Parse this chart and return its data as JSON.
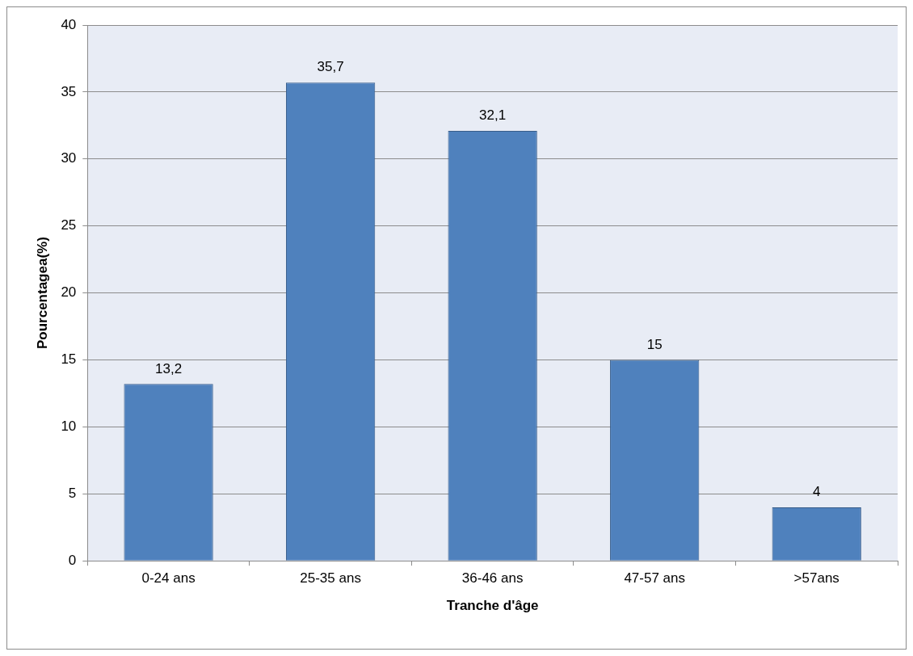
{
  "chart_data": {
    "type": "bar",
    "xlabel": "Tranche d'âge",
    "ylabel": "Pourcentagea(%)",
    "categories": [
      "0-24 ans",
      "25-35 ans",
      "36-46 ans",
      "47-57 ans",
      ">57ans"
    ],
    "values": [
      13.2,
      35.7,
      32.1,
      15,
      4
    ],
    "value_labels": [
      "13,2",
      "35,7",
      "32,1",
      "15",
      "4"
    ],
    "color": "#4f81bd",
    "ylim": [
      0,
      40
    ],
    "yticks": [
      0,
      5,
      10,
      15,
      20,
      25,
      30,
      35,
      40
    ],
    "grid": "y",
    "legend": false
  }
}
